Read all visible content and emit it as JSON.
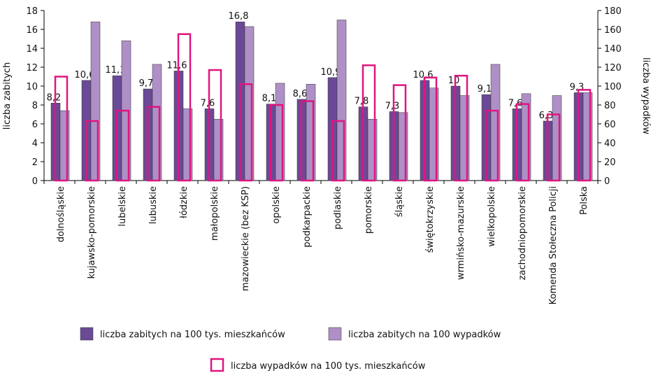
{
  "chart_data": {
    "type": "bar",
    "categories": [
      "dolnośląskie",
      "kujawsko-pomorskie",
      "lubelskie",
      "lubuskie",
      "łódzkie",
      "małopolskie",
      "mazowieckie (bez KSP)",
      "opolskie",
      "podkarpackie",
      "podlaskie",
      "pomorskie",
      "śląskie",
      "świętokrzyskie",
      "wrmińsko-mazurskie",
      "wielkopolskie",
      "zachodniopomorskie",
      "Komenda Stołeczna Policji",
      "Polska"
    ],
    "series": [
      {
        "name": "liczba zabitych na 100 tys. mieszkańców",
        "color": "#6a4a96",
        "style": "filled",
        "axis": "y",
        "values": [
          8.2,
          10.6,
          11.1,
          9.7,
          11.6,
          7.6,
          16.8,
          8.1,
          8.6,
          10.9,
          7.8,
          7.3,
          10.6,
          10,
          9.1,
          7.6,
          6.3,
          9.3
        ],
        "value_labels": [
          "8,2",
          "10,6",
          "11,1",
          "9,7",
          "11,6",
          "7,6",
          "16,8",
          "8,1",
          "8,6",
          "10,9",
          "7,8",
          "7,3",
          "10,6",
          "10",
          "9,1",
          "7,6",
          "6,3",
          "9,3"
        ]
      },
      {
        "name": "liczba zabitych na 100 wypadków",
        "color": "#ae90c6",
        "style": "filled",
        "axis": "y",
        "values": [
          7.4,
          16.8,
          14.8,
          12.3,
          7.6,
          6.5,
          16.3,
          10.3,
          10.2,
          17.0,
          6.5,
          7.2,
          9.8,
          9.0,
          12.3,
          9.2,
          9.0,
          9.3
        ]
      },
      {
        "name": "liczba wypadków na 100 tys. mieszkańców",
        "color": "#e0157f",
        "style": "outline",
        "axis": "y2",
        "values": [
          110,
          63,
          74,
          78,
          155,
          117,
          102,
          80,
          84,
          63,
          122,
          101,
          109,
          111,
          74,
          81,
          70,
          96
        ]
      }
    ],
    "ylabel": "liczba zabitych",
    "y2label": "liczba wypadków",
    "ylim": [
      0,
      18
    ],
    "yticks": [
      0,
      2,
      4,
      6,
      8,
      10,
      12,
      14,
      16,
      18
    ],
    "y2lim": [
      0,
      180
    ],
    "y2ticks": [
      0,
      20,
      40,
      60,
      80,
      100,
      120,
      140,
      160,
      180
    ]
  }
}
